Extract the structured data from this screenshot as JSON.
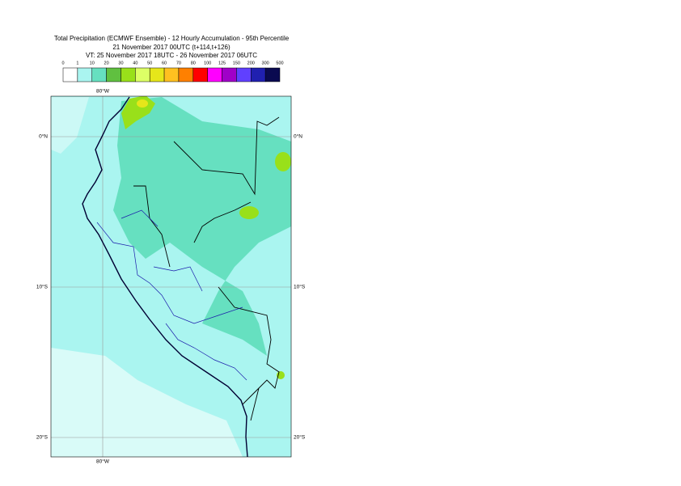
{
  "header": {
    "lines": [
      "Total Precipitation (ECMWF Ensemble) - 12 Hourly Accumulation - 95th Percentile",
      "21 November 2017 00UTC (t+114,t+126)",
      "VT: 25 November 2017 18UTC - 26 November 2017 06UTC"
    ]
  },
  "colorbar": {
    "ticks": [
      0,
      1,
      10,
      20,
      30,
      40,
      50,
      60,
      70,
      80,
      100,
      125,
      150,
      200,
      300,
      500
    ],
    "colors": [
      "#ffffff",
      "#aaf5f0",
      "#66e0c0",
      "#60c040",
      "#99e01a",
      "#ddff66",
      "#e6e61a",
      "#ffc020",
      "#ff8000",
      "#ff0000",
      "#ff00ff",
      "#a000c8",
      "#6040ff",
      "#2020b0",
      "#0a0a50"
    ]
  },
  "map": {
    "lon_labels": [
      "80°W"
    ],
    "lat_labels": [
      "0°N",
      "10°S",
      "20°S"
    ]
  }
}
